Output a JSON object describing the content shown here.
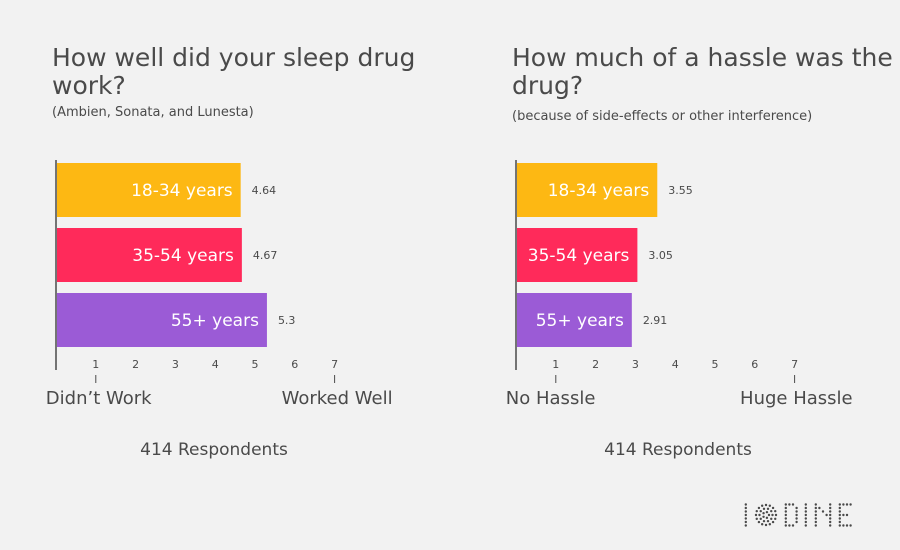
{
  "charts": [
    {
      "title": "How well did your sleep drug work?",
      "subtitle": "(Ambien, Sonata, and Lunesta)",
      "low_label": "Didn’t Work",
      "high_label": "Worked Well",
      "footer": "414 Respondents"
    },
    {
      "title": "How much of a hassle was the drug?",
      "subtitle": "(because of side-effects or other interference)",
      "low_label": "No Hassle",
      "high_label": "Huge Hassle",
      "footer": "414 Respondents"
    }
  ],
  "chart_data": [
    {
      "type": "bar",
      "orientation": "horizontal",
      "title": "How well did your sleep drug work?",
      "subtitle": "(Ambien, Sonata, and Lunesta)",
      "categories": [
        "18-34 years",
        "35-54 years",
        "55+ years"
      ],
      "values": [
        4.64,
        4.67,
        5.3
      ],
      "colors": [
        "#fdb813",
        "#ff2a5a",
        "#9b5bd6"
      ],
      "ticks": [
        1,
        2,
        3,
        4,
        5,
        6,
        7
      ],
      "xlim": [
        1,
        7
      ],
      "scale_labels": [
        "Didn’t Work",
        "Worked Well"
      ]
    },
    {
      "type": "bar",
      "orientation": "horizontal",
      "title": "How much of a hassle was the drug?",
      "subtitle": "(because of side-effects or other interference)",
      "categories": [
        "18-34 years",
        "35-54 years",
        "55+ years"
      ],
      "values": [
        3.55,
        3.05,
        2.91
      ],
      "colors": [
        "#fdb813",
        "#ff2a5a",
        "#9b5bd6"
      ],
      "ticks": [
        1,
        2,
        3,
        4,
        5,
        6,
        7
      ],
      "xlim": [
        1,
        7
      ],
      "scale_labels": [
        "No Hassle",
        "Huge Hassle"
      ]
    }
  ],
  "branding": {
    "logo_text": "IODINE",
    "text_color": "#4a4a4a",
    "background": "#f2f2f2"
  }
}
